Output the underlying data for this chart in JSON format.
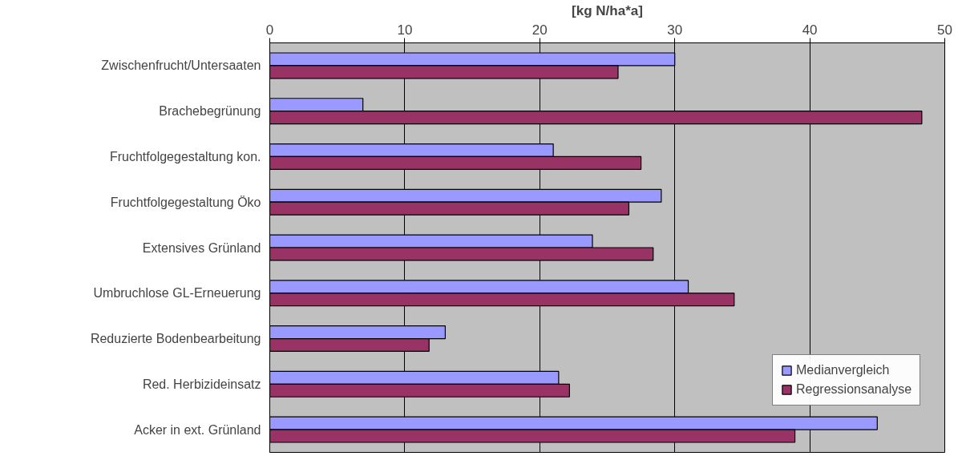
{
  "chart_data": {
    "type": "bar",
    "orientation": "horizontal",
    "xlabel": "[kg N/ha*a]",
    "categories": [
      "Zwischenfrucht/Untersaaten",
      "Brachebegrünung",
      "Fruchtfolgegestaltung kon.",
      "Fruchtfolgegestaltung Öko",
      "Extensives Grünland",
      "Umbruchlose GL-Erneuerung",
      "Reduzierte Bodenbearbeitung",
      "Red. Herbizideinsatz",
      "Acker in ext. Grünland"
    ],
    "series": [
      {
        "name": "Medianvergleich",
        "color": "#9999ff",
        "values": [
          30.0,
          6.9,
          21.0,
          29.0,
          23.9,
          31.0,
          13.0,
          21.4,
          45.0
        ]
      },
      {
        "name": "Regressionsanalyse",
        "color": "#993366",
        "values": [
          25.8,
          48.3,
          27.5,
          26.6,
          28.4,
          34.4,
          11.8,
          22.2,
          38.9
        ]
      }
    ],
    "xlim": [
      0,
      50
    ],
    "xticks": [
      0,
      10,
      20,
      30,
      40,
      50
    ],
    "grid": "x",
    "legend": "bottom right"
  }
}
